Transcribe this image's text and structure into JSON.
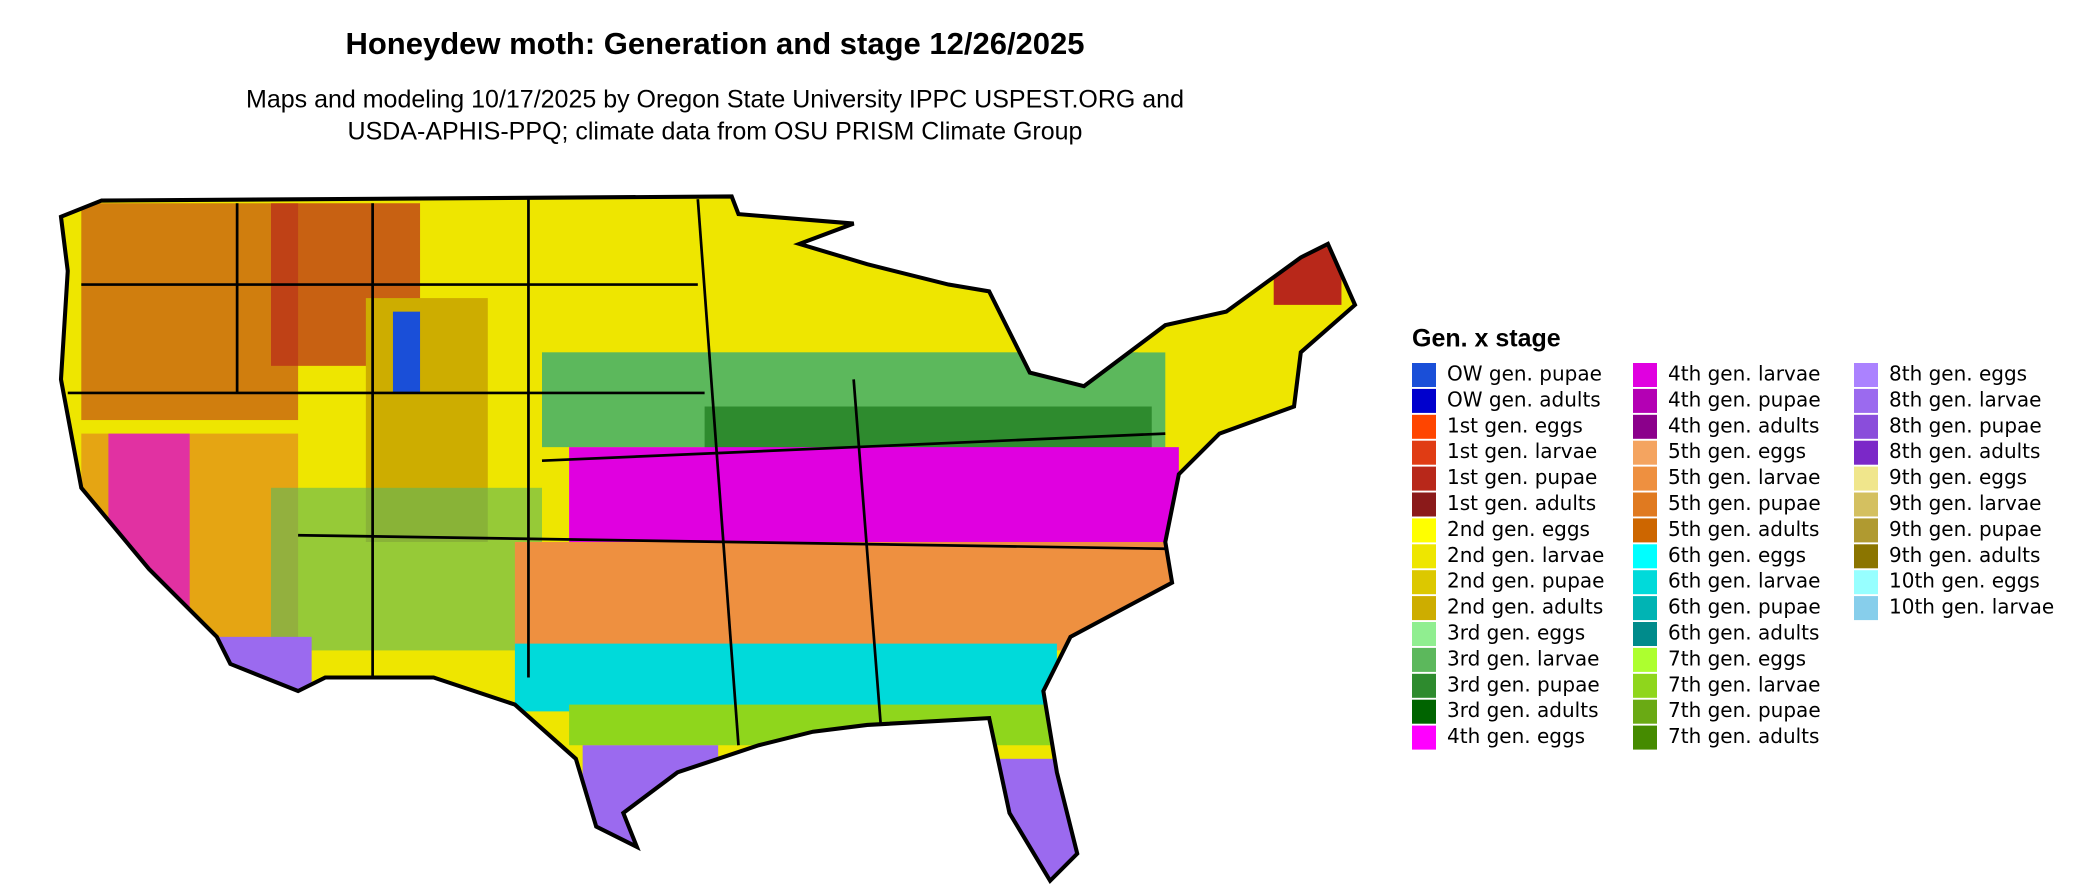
{
  "title": "Honeydew moth: Generation and stage 12/26/2025",
  "subtitle": [
    "Maps and modeling 10/17/2025 by Oregon State University IPPC USPEST.ORG and",
    "USDA-APHIS-PPQ; climate data from OSU PRISM Climate Group"
  ],
  "legend": {
    "title": "Gen. x stage",
    "items": [
      {
        "label": "OW gen. pupae",
        "color": "#1a4fd8"
      },
      {
        "label": "OW gen. adults",
        "color": "#0000cd"
      },
      {
        "label": "1st gen. eggs",
        "color": "#ff4500"
      },
      {
        "label": "1st gen. larvae",
        "color": "#e03c14"
      },
      {
        "label": "1st gen. pupae",
        "color": "#b8281a"
      },
      {
        "label": "1st gen. adults",
        "color": "#8b1a1a"
      },
      {
        "label": "2nd gen. eggs",
        "color": "#ffff00"
      },
      {
        "label": "2nd gen. larvae",
        "color": "#eee600"
      },
      {
        "label": "2nd gen. pupae",
        "color": "#dcc800"
      },
      {
        "label": "2nd gen. adults",
        "color": "#cdad00"
      },
      {
        "label": "3rd gen. eggs",
        "color": "#90ee90"
      },
      {
        "label": "3rd gen. larvae",
        "color": "#5cb85c"
      },
      {
        "label": "3rd gen. pupae",
        "color": "#2e8b2e"
      },
      {
        "label": "3rd gen. adults",
        "color": "#006400"
      },
      {
        "label": "4th gen. eggs",
        "color": "#ff00ff"
      },
      {
        "label": "4th gen. larvae",
        "color": "#e000e0"
      },
      {
        "label": "4th gen. pupae",
        "color": "#b400b4"
      },
      {
        "label": "4th gen. adults",
        "color": "#8b008b"
      },
      {
        "label": "5th gen. eggs",
        "color": "#f4a460"
      },
      {
        "label": "5th gen. larvae",
        "color": "#ee9040"
      },
      {
        "label": "5th gen. pupae",
        "color": "#e07a20"
      },
      {
        "label": "5th gen. adults",
        "color": "#cd6600"
      },
      {
        "label": "6th gen. eggs",
        "color": "#00ffff"
      },
      {
        "label": "6th gen. larvae",
        "color": "#00dada"
      },
      {
        "label": "6th gen. pupae",
        "color": "#00b4b4"
      },
      {
        "label": "6th gen. adults",
        "color": "#008b8b"
      },
      {
        "label": "7th gen. eggs",
        "color": "#adff2f"
      },
      {
        "label": "7th gen. larvae",
        "color": "#8fd61c"
      },
      {
        "label": "7th gen. pupae",
        "color": "#6aaa14"
      },
      {
        "label": "7th gen. adults",
        "color": "#458b00"
      },
      {
        "label": "8th gen. eggs",
        "color": "#ab82ff"
      },
      {
        "label": "8th gen. larvae",
        "color": "#9b6aef"
      },
      {
        "label": "8th gen. pupae",
        "color": "#8a4ddb"
      },
      {
        "label": "8th gen. adults",
        "color": "#7b28c8"
      },
      {
        "label": "9th gen. eggs",
        "color": "#f0e68c"
      },
      {
        "label": "9th gen. larvae",
        "color": "#d4c060"
      },
      {
        "label": "9th gen. pupae",
        "color": "#b09a30"
      },
      {
        "label": "9th gen. adults",
        "color": "#8b7500"
      },
      {
        "label": "10th gen. eggs",
        "color": "#97ffff"
      },
      {
        "label": "10th gen. larvae",
        "color": "#87ceeb"
      }
    ]
  }
}
